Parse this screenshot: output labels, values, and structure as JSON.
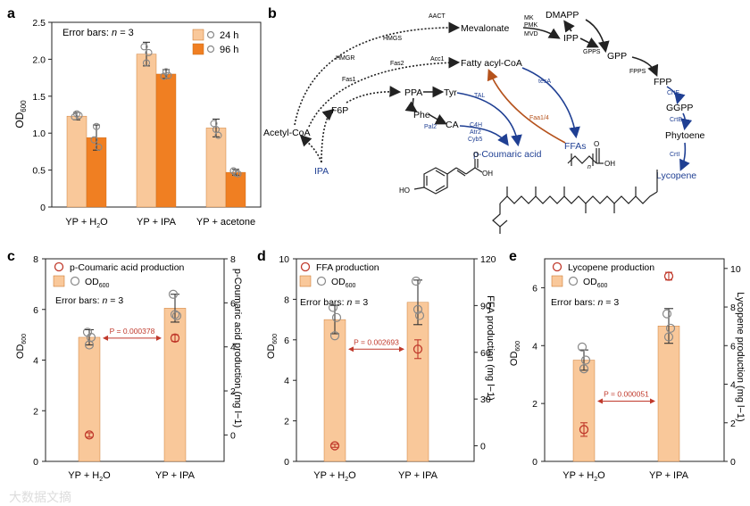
{
  "colors": {
    "bar_light": "#f9c89a",
    "bar_dark": "#f07f22",
    "axis": "#222222",
    "marker_red": "#c0392b",
    "pathway_blue": "#1f3f93",
    "pathway_brown": "#b5521c",
    "gray_marker": "#888888"
  },
  "watermark": "大数据文摘",
  "chart_data": [
    {
      "panel": "a",
      "type": "bar",
      "ylabel_main": "OD",
      "ylabel_sub": "600",
      "ylim": [
        0,
        2.5
      ],
      "yticks": [
        "0",
        "0.5",
        "1.0",
        "1.5",
        "2.0",
        "2.5"
      ],
      "yticks_values": [
        0,
        0.5,
        1.0,
        1.5,
        2.0,
        2.5
      ],
      "categories": [
        "YP + H2O",
        "YP + IPA",
        "YP + acetone"
      ],
      "annotation_prefix": "Error bars: ",
      "annotation_n": "n",
      "annotation_suffix": " = 3",
      "series": [
        {
          "name": "24 h",
          "values": [
            1.23,
            2.07,
            1.07
          ],
          "errors": [
            0.05,
            0.16,
            0.12
          ],
          "points": [
            [
              1.22,
              1.26,
              1.24
            ],
            [
              2.17,
              1.95,
              2.09
            ],
            [
              1.13,
              1.05,
              0.97
            ]
          ]
        },
        {
          "name": "96 h",
          "values": [
            0.94,
            1.8,
            0.47
          ],
          "errors": [
            0.17,
            0.06,
            0.04
          ],
          "points": [
            [
              0.91,
              1.09,
              0.81
            ],
            [
              1.77,
              1.83,
              1.78
            ],
            [
              0.49,
              0.46,
              0.45
            ]
          ]
        }
      ]
    },
    {
      "panel": "c",
      "type": "bar",
      "ylabel_main": "OD",
      "ylabel_sub": "600",
      "y2label": "p-Coumaric acid production (mg l−1)",
      "ylim": [
        0,
        8
      ],
      "yticks": [
        "0",
        "2",
        "4",
        "6",
        "8"
      ],
      "yticks_values": [
        0,
        2,
        4,
        6,
        8
      ],
      "y2lim": [
        -1.2,
        8
      ],
      "y2ticks": [
        "0",
        "2",
        "4",
        "6",
        "8"
      ],
      "y2ticks_values": [
        0,
        2,
        4,
        6,
        8
      ],
      "categories": [
        "YP + H2O",
        "YP + IPA"
      ],
      "legend_production": "p-Coumaric acid production",
      "legend_od_main": "OD",
      "legend_od_sub": "600",
      "annotation_prefix": "Error bars: ",
      "annotation_n": "n",
      "annotation_suffix": " = 3",
      "od_values": [
        4.9,
        6.05
      ],
      "od_errors": [
        0.3,
        0.55
      ],
      "od_points": [
        [
          5.1,
          4.6,
          4.9
        ],
        [
          6.6,
          5.8,
          5.75
        ]
      ],
      "production_values": [
        0.0,
        4.4
      ],
      "production_errors": [
        0.1,
        0.15
      ],
      "p_value": "P = 0.000378"
    },
    {
      "panel": "d",
      "type": "bar",
      "ylabel_main": "OD",
      "ylabel_sub": "600",
      "y2label": "FFA production (mg l−1)",
      "ylim": [
        0,
        10
      ],
      "yticks": [
        "0",
        "2",
        "4",
        "6",
        "8",
        "10"
      ],
      "yticks_values": [
        0,
        2,
        4,
        6,
        8,
        10
      ],
      "y2lim": [
        -10,
        120
      ],
      "y2ticks": [
        "0",
        "30",
        "60",
        "90",
        "120"
      ],
      "y2ticks_values": [
        0,
        30,
        60,
        90,
        120
      ],
      "categories": [
        "YP + H2O",
        "YP + IPA"
      ],
      "legend_production": "FFA production",
      "legend_od_main": "OD",
      "legend_od_sub": "600",
      "annotation_prefix": "Error bars: ",
      "annotation_n": "n",
      "annotation_suffix": " = 3",
      "od_values": [
        7.0,
        7.85
      ],
      "od_errors": [
        0.7,
        1.1
      ],
      "od_points": [
        [
          7.6,
          6.2,
          7.1
        ],
        [
          8.9,
          7.5,
          7.2
        ]
      ],
      "production_values": [
        0.0,
        62.0
      ],
      "production_errors": [
        1.0,
        6.0
      ],
      "p_value": "P = 0.002693"
    },
    {
      "panel": "e",
      "type": "bar",
      "ylabel_main": "OD",
      "ylabel_sub": "600",
      "y2label": "Lycopene production (mg l−1)",
      "ylim": [
        0,
        7
      ],
      "yticks": [
        "0",
        "2",
        "4",
        "6"
      ],
      "yticks_values": [
        0,
        2,
        4,
        6
      ],
      "y2lim": [
        0,
        10.5
      ],
      "y2ticks": [
        "0",
        "2",
        "4",
        "6",
        "8",
        "10"
      ],
      "y2ticks_values": [
        0,
        2,
        4,
        6,
        8,
        10
      ],
      "categories": [
        "YP + H2O",
        "YP + IPA"
      ],
      "legend_production": "Lycopene production",
      "legend_od_main": "OD",
      "legend_od_sub": "600",
      "annotation_prefix": "Error bars: ",
      "annotation_n": "n",
      "annotation_suffix": " = 3",
      "od_values": [
        3.5,
        4.68
      ],
      "od_errors": [
        0.35,
        0.6
      ],
      "od_points": [
        [
          3.95,
          3.2,
          3.5
        ],
        [
          5.1,
          4.3,
          4.6
        ]
      ],
      "production_values": [
        1.65,
        9.6
      ],
      "production_errors": [
        0.35,
        0.2
      ],
      "p_value": "P = 0.000051"
    }
  ],
  "pathway": {
    "panel": "b",
    "nodes": {
      "acetyl_coa": "Acetyl-CoA",
      "ipa": "IPA",
      "f6p": "F6P",
      "ppa": "PPA",
      "tyr": "Tyr",
      "phe": "Phe",
      "ca": "CA",
      "p_coumaric": "p-Coumaric acid",
      "mevalonate": "Mevalonate",
      "dmapp": "DMAPP",
      "ipp": "IPP",
      "gpp": "GPP",
      "fpp": "FPP",
      "ggpp": "GGPP",
      "phytoene": "Phytoene",
      "lycopene": "Lycopene",
      "fatty_acyl_coa": "Fatty acyl-CoA",
      "ffas": "FFAs",
      "ffa_n": "n",
      "ffa_oh": "OH",
      "ffa_o": "O",
      "pca_ho": "HO",
      "pca_oh": "OH",
      "pca_o": "O"
    },
    "enzymes": {
      "aact": "AACT",
      "hmgs": "HMGS",
      "hmgr": "HMGR",
      "fas2": "Fas2",
      "acc1": "Acc1",
      "fas1": "Fas1",
      "mk": "MK",
      "pmk": "PMK",
      "mvd": "MVD",
      "gpps": "GPPS",
      "fpps": "FPPS",
      "crte": "CrtE",
      "crtb": "CrtB",
      "crti": "CrtI",
      "tesa": "tesA",
      "faa": "Faa1/4",
      "tal": "TAL",
      "pal2": "Pal2",
      "c4h": "C4H",
      "atr2": "Atr2",
      "cyb5": "Cyb5"
    }
  },
  "panel_labels": [
    "a",
    "b",
    "c",
    "d",
    "e"
  ]
}
